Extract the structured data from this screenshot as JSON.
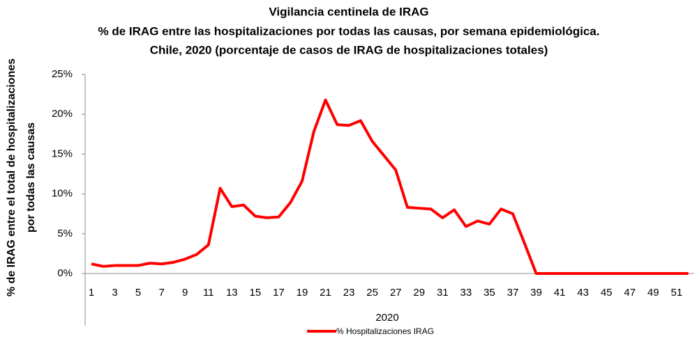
{
  "chart_data": {
    "type": "line",
    "title": [
      "Vigilancia centinela de IRAG",
      "% de IRAG entre las hospitalizaciones por todas las causas, por semana epidemiológica.",
      "Chile, 2020 (porcentaje de casos de IRAG de hospitalizaciones totales)"
    ],
    "y_label": [
      "% de IRAG entre el total de hospitalizaciones",
      "por todas las causas"
    ],
    "x_label": "2020",
    "categories": [
      1,
      null,
      3,
      null,
      5,
      null,
      7,
      null,
      9,
      null,
      11,
      null,
      13,
      null,
      15,
      null,
      17,
      null,
      19,
      null,
      21,
      null,
      23,
      null,
      25,
      null,
      27,
      null,
      29,
      null,
      31,
      null,
      33,
      null,
      35,
      null,
      37,
      null,
      39,
      null,
      41,
      null,
      43,
      null,
      45,
      null,
      47,
      null,
      49,
      null,
      51,
      null
    ],
    "series": [
      {
        "name": "% Hospitalizaciones IRAG",
        "color": "#ff0000",
        "values": [
          1.2,
          0.9,
          1.0,
          1.0,
          1.0,
          1.3,
          1.2,
          1.4,
          1.8,
          2.4,
          3.6,
          10.7,
          8.4,
          8.6,
          7.2,
          7.0,
          7.1,
          8.9,
          11.6,
          17.8,
          21.8,
          18.7,
          18.6,
          19.2,
          16.6,
          14.8,
          13.0,
          8.3,
          8.2,
          8.1,
          7.0,
          8.0,
          5.9,
          6.6,
          6.2,
          8.1,
          7.5,
          3.8,
          0,
          0,
          0,
          0,
          0,
          0,
          0,
          0,
          0,
          0,
          0,
          0,
          0,
          0
        ]
      }
    ],
    "ylim": [
      0,
      25
    ],
    "yticks": [
      {
        "value": 0,
        "label": "0%"
      },
      {
        "value": 5,
        "label": "5%"
      },
      {
        "value": 10,
        "label": "10%"
      },
      {
        "value": 15,
        "label": "15%"
      },
      {
        "value": 20,
        "label": "20%"
      },
      {
        "value": 25,
        "label": "25%"
      }
    ],
    "grid": false,
    "legend": "bottom"
  }
}
